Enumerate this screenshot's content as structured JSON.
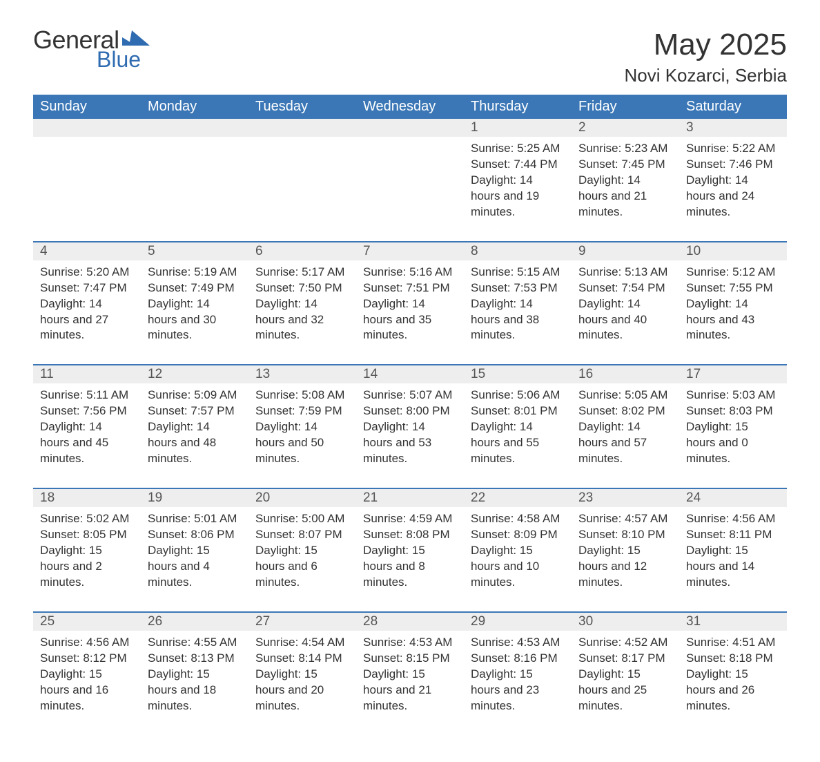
{
  "brand": {
    "general": "General",
    "blue": "Blue",
    "mark_color": "#2e6bb0"
  },
  "title": "May 2025",
  "location": "Novi Kozarci, Serbia",
  "colors": {
    "header_bg": "#3b77b6",
    "header_text": "#ffffff",
    "daynum_bg": "#eeeeee",
    "daynum_text": "#555555",
    "body_text": "#333333",
    "page_bg": "#ffffff",
    "rule": "#3b77b6"
  },
  "fonts": {
    "title_size_pt": 33,
    "location_size_pt": 20,
    "dow_size_pt": 15,
    "daynum_size_pt": 14,
    "detail_size_pt": 13
  },
  "days_of_week": [
    "Sunday",
    "Monday",
    "Tuesday",
    "Wednesday",
    "Thursday",
    "Friday",
    "Saturday"
  ],
  "weeks": [
    [
      null,
      null,
      null,
      null,
      {
        "n": "1",
        "sunrise": "Sunrise: 5:25 AM",
        "sunset": "Sunset: 7:44 PM",
        "daylight": "Daylight: 14 hours and 19 minutes."
      },
      {
        "n": "2",
        "sunrise": "Sunrise: 5:23 AM",
        "sunset": "Sunset: 7:45 PM",
        "daylight": "Daylight: 14 hours and 21 minutes."
      },
      {
        "n": "3",
        "sunrise": "Sunrise: 5:22 AM",
        "sunset": "Sunset: 7:46 PM",
        "daylight": "Daylight: 14 hours and 24 minutes."
      }
    ],
    [
      {
        "n": "4",
        "sunrise": "Sunrise: 5:20 AM",
        "sunset": "Sunset: 7:47 PM",
        "daylight": "Daylight: 14 hours and 27 minutes."
      },
      {
        "n": "5",
        "sunrise": "Sunrise: 5:19 AM",
        "sunset": "Sunset: 7:49 PM",
        "daylight": "Daylight: 14 hours and 30 minutes."
      },
      {
        "n": "6",
        "sunrise": "Sunrise: 5:17 AM",
        "sunset": "Sunset: 7:50 PM",
        "daylight": "Daylight: 14 hours and 32 minutes."
      },
      {
        "n": "7",
        "sunrise": "Sunrise: 5:16 AM",
        "sunset": "Sunset: 7:51 PM",
        "daylight": "Daylight: 14 hours and 35 minutes."
      },
      {
        "n": "8",
        "sunrise": "Sunrise: 5:15 AM",
        "sunset": "Sunset: 7:53 PM",
        "daylight": "Daylight: 14 hours and 38 minutes."
      },
      {
        "n": "9",
        "sunrise": "Sunrise: 5:13 AM",
        "sunset": "Sunset: 7:54 PM",
        "daylight": "Daylight: 14 hours and 40 minutes."
      },
      {
        "n": "10",
        "sunrise": "Sunrise: 5:12 AM",
        "sunset": "Sunset: 7:55 PM",
        "daylight": "Daylight: 14 hours and 43 minutes."
      }
    ],
    [
      {
        "n": "11",
        "sunrise": "Sunrise: 5:11 AM",
        "sunset": "Sunset: 7:56 PM",
        "daylight": "Daylight: 14 hours and 45 minutes."
      },
      {
        "n": "12",
        "sunrise": "Sunrise: 5:09 AM",
        "sunset": "Sunset: 7:57 PM",
        "daylight": "Daylight: 14 hours and 48 minutes."
      },
      {
        "n": "13",
        "sunrise": "Sunrise: 5:08 AM",
        "sunset": "Sunset: 7:59 PM",
        "daylight": "Daylight: 14 hours and 50 minutes."
      },
      {
        "n": "14",
        "sunrise": "Sunrise: 5:07 AM",
        "sunset": "Sunset: 8:00 PM",
        "daylight": "Daylight: 14 hours and 53 minutes."
      },
      {
        "n": "15",
        "sunrise": "Sunrise: 5:06 AM",
        "sunset": "Sunset: 8:01 PM",
        "daylight": "Daylight: 14 hours and 55 minutes."
      },
      {
        "n": "16",
        "sunrise": "Sunrise: 5:05 AM",
        "sunset": "Sunset: 8:02 PM",
        "daylight": "Daylight: 14 hours and 57 minutes."
      },
      {
        "n": "17",
        "sunrise": "Sunrise: 5:03 AM",
        "sunset": "Sunset: 8:03 PM",
        "daylight": "Daylight: 15 hours and 0 minutes."
      }
    ],
    [
      {
        "n": "18",
        "sunrise": "Sunrise: 5:02 AM",
        "sunset": "Sunset: 8:05 PM",
        "daylight": "Daylight: 15 hours and 2 minutes."
      },
      {
        "n": "19",
        "sunrise": "Sunrise: 5:01 AM",
        "sunset": "Sunset: 8:06 PM",
        "daylight": "Daylight: 15 hours and 4 minutes."
      },
      {
        "n": "20",
        "sunrise": "Sunrise: 5:00 AM",
        "sunset": "Sunset: 8:07 PM",
        "daylight": "Daylight: 15 hours and 6 minutes."
      },
      {
        "n": "21",
        "sunrise": "Sunrise: 4:59 AM",
        "sunset": "Sunset: 8:08 PM",
        "daylight": "Daylight: 15 hours and 8 minutes."
      },
      {
        "n": "22",
        "sunrise": "Sunrise: 4:58 AM",
        "sunset": "Sunset: 8:09 PM",
        "daylight": "Daylight: 15 hours and 10 minutes."
      },
      {
        "n": "23",
        "sunrise": "Sunrise: 4:57 AM",
        "sunset": "Sunset: 8:10 PM",
        "daylight": "Daylight: 15 hours and 12 minutes."
      },
      {
        "n": "24",
        "sunrise": "Sunrise: 4:56 AM",
        "sunset": "Sunset: 8:11 PM",
        "daylight": "Daylight: 15 hours and 14 minutes."
      }
    ],
    [
      {
        "n": "25",
        "sunrise": "Sunrise: 4:56 AM",
        "sunset": "Sunset: 8:12 PM",
        "daylight": "Daylight: 15 hours and 16 minutes."
      },
      {
        "n": "26",
        "sunrise": "Sunrise: 4:55 AM",
        "sunset": "Sunset: 8:13 PM",
        "daylight": "Daylight: 15 hours and 18 minutes."
      },
      {
        "n": "27",
        "sunrise": "Sunrise: 4:54 AM",
        "sunset": "Sunset: 8:14 PM",
        "daylight": "Daylight: 15 hours and 20 minutes."
      },
      {
        "n": "28",
        "sunrise": "Sunrise: 4:53 AM",
        "sunset": "Sunset: 8:15 PM",
        "daylight": "Daylight: 15 hours and 21 minutes."
      },
      {
        "n": "29",
        "sunrise": "Sunrise: 4:53 AM",
        "sunset": "Sunset: 8:16 PM",
        "daylight": "Daylight: 15 hours and 23 minutes."
      },
      {
        "n": "30",
        "sunrise": "Sunrise: 4:52 AM",
        "sunset": "Sunset: 8:17 PM",
        "daylight": "Daylight: 15 hours and 25 minutes."
      },
      {
        "n": "31",
        "sunrise": "Sunrise: 4:51 AM",
        "sunset": "Sunset: 8:18 PM",
        "daylight": "Daylight: 15 hours and 26 minutes."
      }
    ]
  ]
}
